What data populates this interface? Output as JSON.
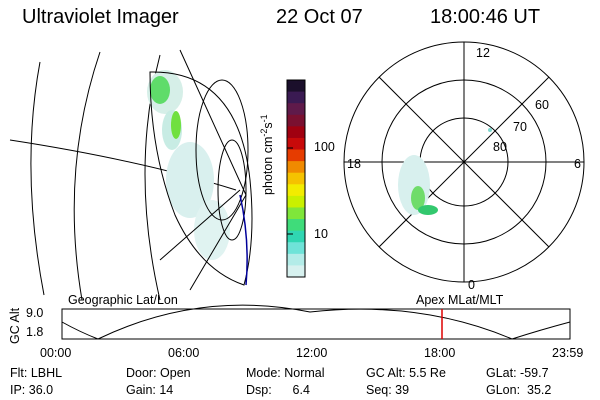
{
  "header": {
    "title": "Ultraviolet Imager",
    "date": "22 Oct 07",
    "time": "18:00:46 UT"
  },
  "colorbar": {
    "label_parts": [
      "photon cm",
      "-2",
      "s",
      "-1"
    ],
    "ticks": [
      "100",
      "10"
    ],
    "colors": [
      "#1b0f2b",
      "#3a1a52",
      "#5f1a4a",
      "#7a1030",
      "#a00010",
      "#c80a0a",
      "#e63c00",
      "#f08a00",
      "#f5c200",
      "#f2ec00",
      "#c9f000",
      "#7fe63a",
      "#3fdc7a",
      "#30d6b2",
      "#6fe3d8",
      "#b3ece8",
      "#d7f1ef"
    ]
  },
  "polar": {
    "lat_labels": [
      "80",
      "70",
      "60"
    ],
    "mlt_labels": [
      "12",
      "18",
      "6",
      "0"
    ]
  },
  "strip": {
    "left_label": "Geographic Lat/Lon",
    "right_label": "Apex MLat/MLT",
    "y_axis_label": "GC Alt",
    "y_ticks": [
      "9.0",
      "1.8"
    ],
    "x_ticks": [
      "00:00",
      "06:00",
      "12:00",
      "18:00",
      "23:59"
    ],
    "marker_color": "#dd0000"
  },
  "info": {
    "flt": "Flt: LBHL",
    "ip": "IP: 36.0",
    "door": "Door: Open",
    "gain": "Gain: 14",
    "mode": "Mode: Normal",
    "dsp": "Dsp:      6.4",
    "gcalt": "GC Alt: 5.5 Re",
    "seq": "Seq: 39",
    "glat": "GLat: -59.7",
    "glon": "GLon:  35.2"
  }
}
